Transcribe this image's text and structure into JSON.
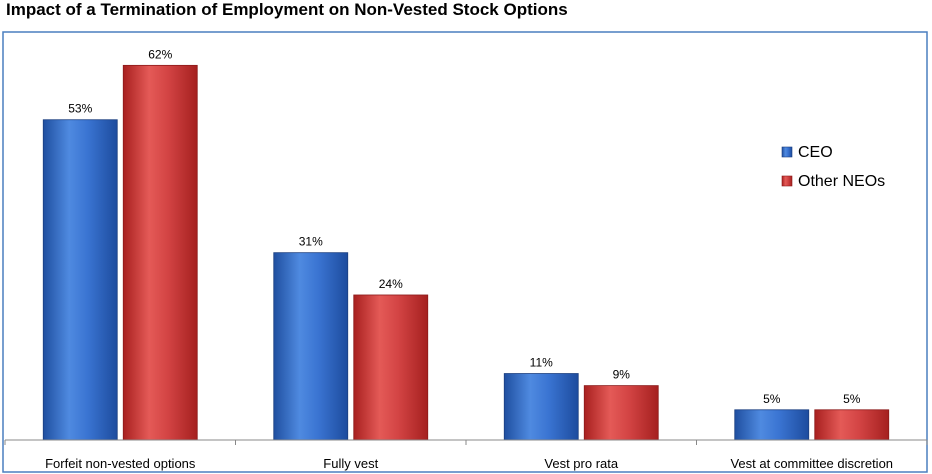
{
  "chart_data": {
    "type": "bar",
    "title": "Impact of a Termination of Employment on Non-Vested Stock Options",
    "categories": [
      "Forfeit non-vested options",
      "Fully vest",
      "Vest pro rata",
      "Vest at committee discretion"
    ],
    "series": [
      {
        "name": "CEO",
        "values": [
          53,
          31,
          11,
          5
        ],
        "labels": [
          "53%",
          "31%",
          "11%",
          "5%"
        ],
        "color": "#2f68c8"
      },
      {
        "name": "Other NEOs",
        "values": [
          62,
          24,
          9,
          5
        ],
        "labels": [
          "62%",
          "24%",
          "9%",
          "5%"
        ],
        "color": "#cf3a3a"
      }
    ],
    "ylim": [
      0,
      70
    ],
    "grid": false,
    "legend_position": "right"
  }
}
